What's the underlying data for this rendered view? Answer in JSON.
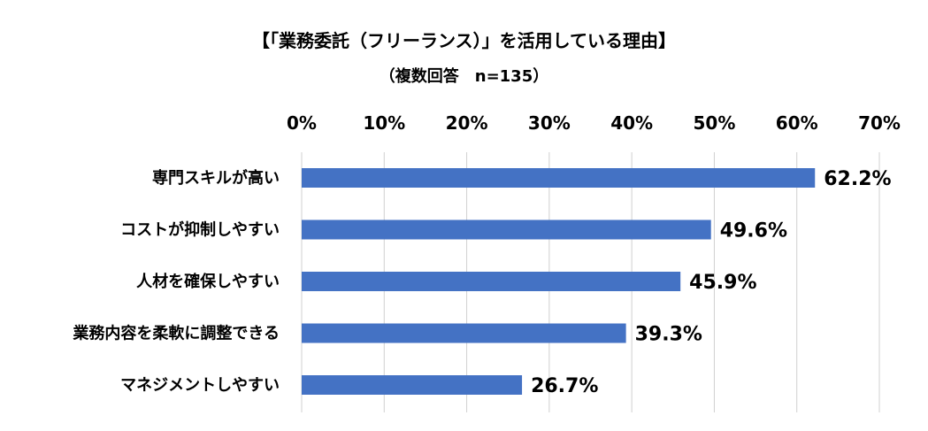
{
  "chart_data": {
    "type": "bar",
    "orientation": "horizontal",
    "title": "【「業務委託（フリーランス）」を活用している理由】",
    "subtitle": "（複数回答　n=135）",
    "categories": [
      "専門スキルが高い",
      "コストが抑制しやすい",
      "人材を確保しやすい",
      "業務内容を柔軟に調整できる",
      "マネジメントしやすい"
    ],
    "values": [
      62.2,
      49.6,
      45.9,
      39.3,
      26.7
    ],
    "value_labels": [
      "62.2%",
      "49.6%",
      "45.9%",
      "39.3%",
      "26.7%"
    ],
    "xlim": [
      0,
      70
    ],
    "x_ticks": [
      0,
      10,
      20,
      30,
      40,
      50,
      60,
      70
    ],
    "x_tick_labels": [
      "0%",
      "10%",
      "20%",
      "30%",
      "40%",
      "50%",
      "60%",
      "70%"
    ],
    "x_axis_position": "top",
    "grid": true,
    "legend": "none",
    "bar_color": "#4472c4",
    "grid_color": "#d0d0d0"
  }
}
